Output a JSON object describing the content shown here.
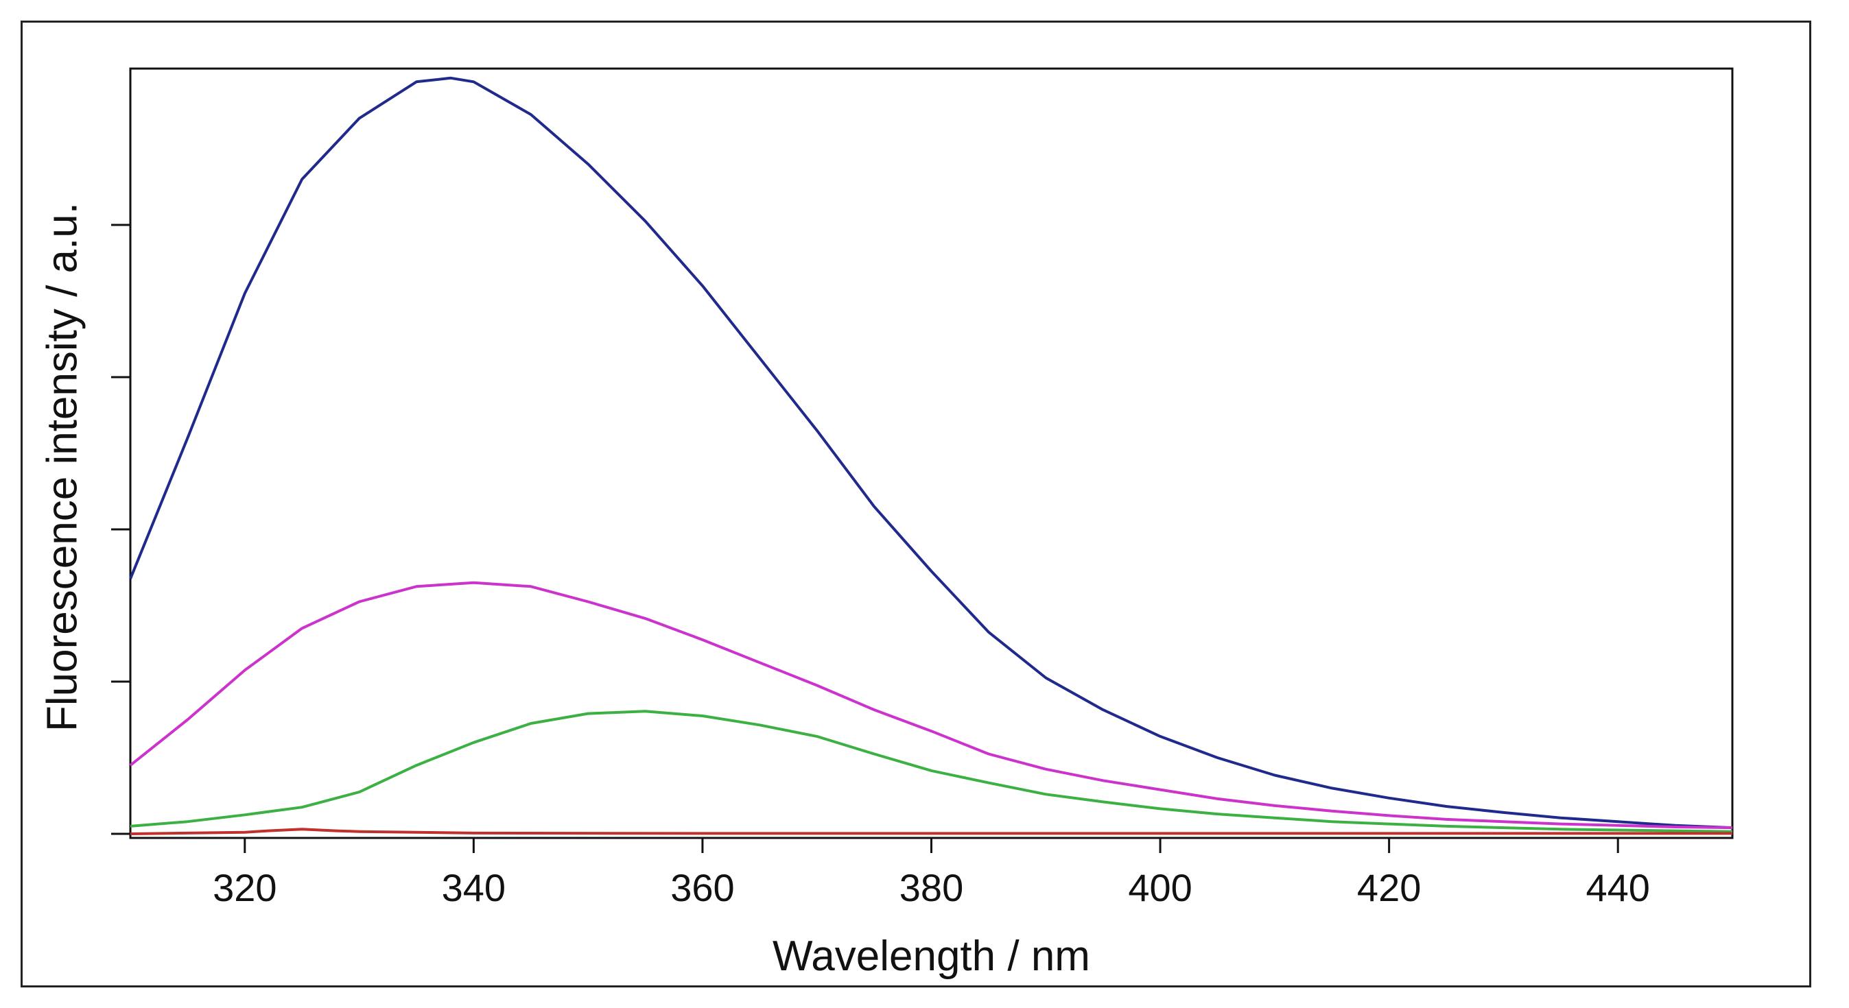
{
  "chart_data": {
    "type": "line",
    "title": "",
    "xlabel": "Wavelength / nm",
    "ylabel": "Fluorescence intensity / a.u.",
    "xlim": [
      310,
      450
    ],
    "ylim": [
      0,
      100
    ],
    "xticks": [
      320,
      340,
      360,
      380,
      400,
      420,
      440
    ],
    "yticks": [
      0,
      20,
      40,
      60,
      80
    ],
    "ytick_labels_shown": false,
    "grid": false,
    "legend": "none",
    "series": [
      {
        "name": "blue",
        "color": "#1f2a8c",
        "x": [
          310,
          315,
          320,
          325,
          330,
          335,
          338,
          340,
          345,
          350,
          355,
          360,
          365,
          370,
          375,
          380,
          385,
          390,
          395,
          400,
          405,
          410,
          415,
          420,
          425,
          430,
          435,
          440,
          445,
          450
        ],
        "y": [
          33.5,
          52,
          71,
          86,
          94,
          98.8,
          99.3,
          98.8,
          94.5,
          88,
          80.5,
          72,
          62.5,
          53,
          43,
          34.5,
          26.5,
          20.5,
          16.3,
          12.8,
          10,
          7.7,
          6,
          4.7,
          3.6,
          2.8,
          2.1,
          1.6,
          1.1,
          0.8
        ]
      },
      {
        "name": "magenta",
        "color": "#cc33cc",
        "x": [
          310,
          315,
          320,
          325,
          330,
          335,
          340,
          345,
          350,
          355,
          360,
          365,
          370,
          375,
          380,
          385,
          390,
          395,
          400,
          405,
          410,
          415,
          420,
          425,
          430,
          435,
          440,
          445,
          450
        ],
        "y": [
          9,
          15,
          21.5,
          27,
          30.5,
          32.5,
          33,
          32.5,
          30.5,
          28.3,
          25.5,
          22.5,
          19.5,
          16.3,
          13.5,
          10.5,
          8.5,
          7,
          5.8,
          4.6,
          3.7,
          3,
          2.4,
          1.9,
          1.6,
          1.3,
          1.1,
          0.9,
          0.8
        ]
      },
      {
        "name": "green",
        "color": "#3cb043",
        "x": [
          310,
          315,
          320,
          325,
          330,
          335,
          340,
          345,
          350,
          355,
          360,
          365,
          370,
          375,
          380,
          385,
          390,
          395,
          400,
          405,
          410,
          415,
          420,
          425,
          430,
          435,
          440,
          445,
          450
        ],
        "y": [
          1,
          1.6,
          2.5,
          3.5,
          5.5,
          9,
          12,
          14.5,
          15.8,
          16.1,
          15.5,
          14.3,
          12.8,
          10.5,
          8.3,
          6.7,
          5.2,
          4.2,
          3.3,
          2.6,
          2.1,
          1.6,
          1.3,
          1,
          0.8,
          0.6,
          0.5,
          0.4,
          0.3
        ]
      },
      {
        "name": "red",
        "color": "#c0302c",
        "x": [
          310,
          320,
          322,
          325,
          328,
          330,
          335,
          340,
          360,
          380,
          400,
          420,
          440,
          450
        ],
        "y": [
          0,
          0.2,
          0.4,
          0.6,
          0.4,
          0.3,
          0.2,
          0.1,
          0.05,
          0.05,
          0.05,
          0.05,
          0.05,
          0.05
        ]
      }
    ]
  }
}
